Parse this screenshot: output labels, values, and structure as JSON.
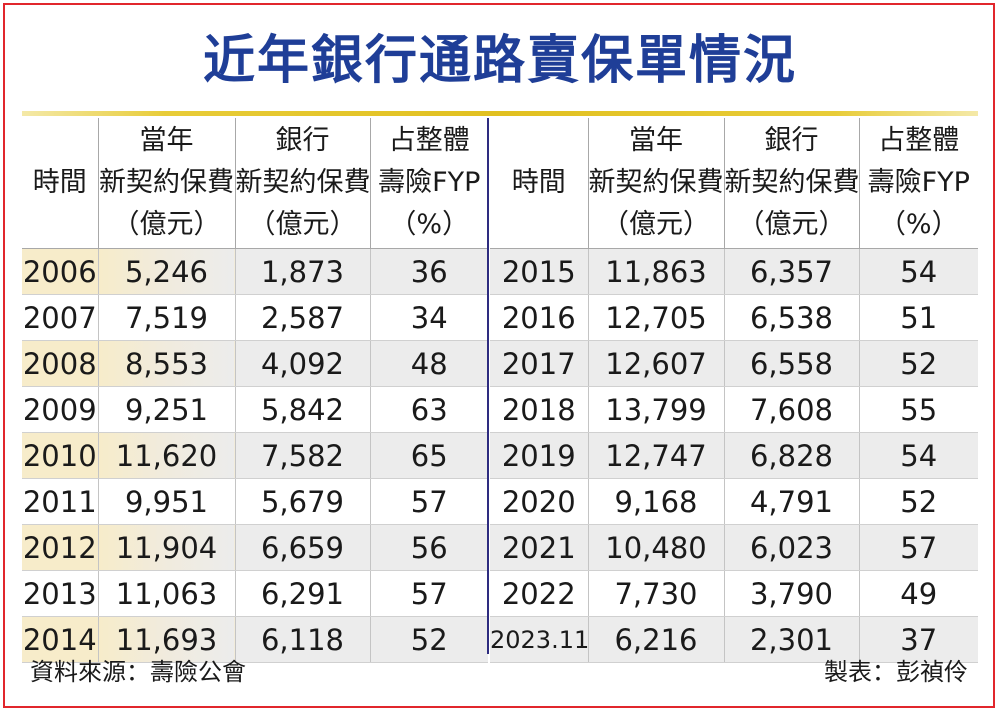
{
  "title": "近年銀行通路賣保單情況",
  "headers": {
    "time": "時間",
    "col1": [
      "當年",
      "新契約保費",
      "（億元）"
    ],
    "col2": [
      "銀行",
      "新契約保費",
      "（億元）"
    ],
    "col3": [
      "占整體",
      "壽險FYP",
      "（%）"
    ]
  },
  "left_rows": [
    {
      "year": "2006",
      "total": "5,246",
      "bank": "1,873",
      "pct": "36"
    },
    {
      "year": "2007",
      "total": "7,519",
      "bank": "2,587",
      "pct": "34"
    },
    {
      "year": "2008",
      "total": "8,553",
      "bank": "4,092",
      "pct": "48"
    },
    {
      "year": "2009",
      "total": "9,251",
      "bank": "5,842",
      "pct": "63"
    },
    {
      "year": "2010",
      "total": "11,620",
      "bank": "7,582",
      "pct": "65"
    },
    {
      "year": "2011",
      "total": "9,951",
      "bank": "5,679",
      "pct": "57"
    },
    {
      "year": "2012",
      "total": "11,904",
      "bank": "6,659",
      "pct": "56"
    },
    {
      "year": "2013",
      "total": "11,063",
      "bank": "6,291",
      "pct": "57"
    },
    {
      "year": "2014",
      "total": "11,693",
      "bank": "6,118",
      "pct": "52"
    }
  ],
  "right_rows": [
    {
      "year": "2015",
      "total": "11,863",
      "bank": "6,357",
      "pct": "54"
    },
    {
      "year": "2016",
      "total": "12,705",
      "bank": "6,538",
      "pct": "51"
    },
    {
      "year": "2017",
      "total": "12,607",
      "bank": "6,558",
      "pct": "52"
    },
    {
      "year": "2018",
      "total": "13,799",
      "bank": "7,608",
      "pct": "55"
    },
    {
      "year": "2019",
      "total": "12,747",
      "bank": "6,828",
      "pct": "54"
    },
    {
      "year": "2020",
      "total": "9,168",
      "bank": "4,791",
      "pct": "52"
    },
    {
      "year": "2021",
      "total": "10,480",
      "bank": "6,023",
      "pct": "57"
    },
    {
      "year": "2022",
      "total": "7,730",
      "bank": "3,790",
      "pct": "49"
    },
    {
      "year": "2023.11",
      "total": "6,216",
      "bank": "2,301",
      "pct": "37"
    }
  ],
  "footer": {
    "source": "資料來源：壽險公會",
    "maker": "製表：彭禎伶"
  },
  "colors": {
    "title": "#1f3e97",
    "frame": "#e1262c",
    "gold_rule": "#e1c020",
    "divider": "#2e2c80",
    "row_shade": "#ececec",
    "year_highlight": "#f7ecca"
  }
}
